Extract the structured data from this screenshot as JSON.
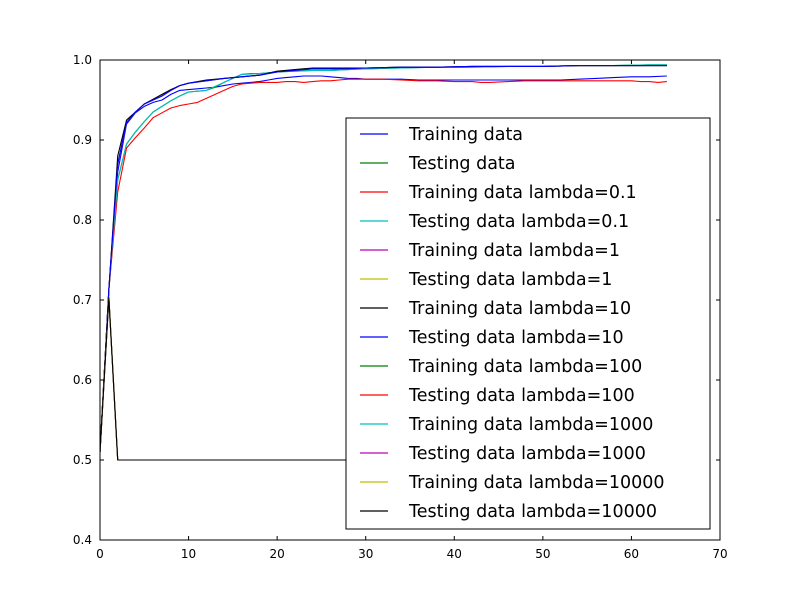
{
  "chart_data": {
    "type": "line",
    "xlim": [
      0,
      70
    ],
    "ylim": [
      0.4,
      1.0
    ],
    "xticks": [
      "0",
      "10",
      "20",
      "30",
      "40",
      "50",
      "60",
      "70"
    ],
    "yticks": [
      "0.4",
      "0.5",
      "0.6",
      "0.7",
      "0.8",
      "0.9",
      "1.0"
    ],
    "grid": false,
    "legend_position": "lower-right",
    "series": [
      {
        "name": "Training data",
        "color": "#0000ff",
        "x": [
          0,
          1,
          2,
          3,
          4,
          5,
          6,
          7,
          8,
          9,
          10,
          11,
          12,
          13,
          14,
          15,
          16,
          17,
          18,
          19,
          20,
          21,
          22,
          23,
          24,
          25,
          26,
          27,
          28,
          29,
          30,
          32,
          34,
          36,
          38,
          40,
          42,
          44,
          46,
          48,
          50,
          52,
          54,
          56,
          58,
          60,
          62,
          64
        ],
        "y": [
          0.51,
          0.713,
          0.86,
          0.92,
          0.934,
          0.942,
          0.947,
          0.95,
          0.957,
          0.962,
          0.963,
          0.964,
          0.965,
          0.966,
          0.968,
          0.97,
          0.971,
          0.972,
          0.973,
          0.975,
          0.977,
          0.978,
          0.979,
          0.98,
          0.98,
          0.98,
          0.979,
          0.978,
          0.977,
          0.977,
          0.976,
          0.976,
          0.976,
          0.975,
          0.975,
          0.975,
          0.975,
          0.975,
          0.975,
          0.975,
          0.975,
          0.975,
          0.976,
          0.977,
          0.978,
          0.979,
          0.979,
          0.98
        ]
      },
      {
        "name": "Testing data",
        "color": "#008000",
        "x": [
          0,
          1,
          2,
          3,
          4,
          5,
          6,
          7,
          8,
          9,
          10,
          11,
          12,
          13,
          14,
          15,
          16,
          17,
          18,
          19,
          20,
          22,
          24,
          26,
          28,
          30,
          34,
          38,
          42,
          46,
          50,
          54,
          58,
          62,
          64
        ],
        "y": [
          0.51,
          0.713,
          0.85,
          0.895,
          0.91,
          0.923,
          0.935,
          0.942,
          0.949,
          0.955,
          0.96,
          0.961,
          0.962,
          0.966,
          0.972,
          0.977,
          0.982,
          0.983,
          0.983,
          0.984,
          0.985,
          0.986,
          0.987,
          0.987,
          0.988,
          0.989,
          0.99,
          0.991,
          0.991,
          0.992,
          0.992,
          0.993,
          0.993,
          0.994,
          0.994
        ]
      },
      {
        "name": "Training data lambda=0.1",
        "color": "#ff0000",
        "x": [
          0,
          1,
          2,
          3,
          4,
          5,
          6,
          7,
          8,
          9,
          10,
          11,
          12,
          13,
          14,
          15,
          16,
          17,
          18,
          19,
          20,
          21,
          22,
          23,
          24,
          25,
          26,
          27,
          28,
          29,
          30,
          32,
          34,
          36,
          38,
          40,
          42,
          43,
          44,
          46,
          48,
          50,
          52,
          54,
          56,
          58,
          60,
          61,
          62,
          63,
          64
        ],
        "y": [
          0.51,
          0.713,
          0.835,
          0.89,
          0.903,
          0.915,
          0.928,
          0.934,
          0.94,
          0.943,
          0.945,
          0.947,
          0.952,
          0.957,
          0.962,
          0.967,
          0.97,
          0.971,
          0.972,
          0.972,
          0.972,
          0.973,
          0.973,
          0.972,
          0.973,
          0.974,
          0.974,
          0.975,
          0.976,
          0.976,
          0.976,
          0.976,
          0.975,
          0.974,
          0.974,
          0.973,
          0.973,
          0.972,
          0.972,
          0.973,
          0.974,
          0.974,
          0.974,
          0.974,
          0.974,
          0.974,
          0.974,
          0.973,
          0.973,
          0.972,
          0.973
        ]
      },
      {
        "name": "Testing data lambda=0.1",
        "color": "#00bfbf",
        "x": [
          0,
          1,
          2,
          3,
          4,
          5,
          6,
          7,
          8,
          9,
          10,
          12,
          14,
          16,
          18,
          20,
          22,
          24,
          26,
          28,
          30,
          34,
          38,
          42,
          46,
          50,
          54,
          58,
          62,
          64
        ],
        "y": [
          0.51,
          0.713,
          0.85,
          0.895,
          0.91,
          0.923,
          0.935,
          0.942,
          0.949,
          0.955,
          0.96,
          0.962,
          0.972,
          0.982,
          0.983,
          0.985,
          0.986,
          0.987,
          0.987,
          0.988,
          0.989,
          0.99,
          0.991,
          0.991,
          0.992,
          0.992,
          0.993,
          0.993,
          0.994,
          0.994
        ]
      },
      {
        "name": "Training data lambda=1",
        "color": "#bf00bf",
        "x": [
          0,
          1,
          2,
          3,
          4,
          5,
          6,
          7,
          8,
          9,
          10,
          12,
          14,
          16,
          18,
          20,
          22,
          24,
          26,
          28,
          30,
          34,
          38,
          42,
          46,
          50,
          54,
          58,
          62,
          64
        ],
        "y": [
          0.51,
          0.713,
          0.87,
          0.922,
          0.935,
          0.945,
          0.95,
          0.955,
          0.962,
          0.968,
          0.971,
          0.974,
          0.977,
          0.979,
          0.981,
          0.985,
          0.987,
          0.989,
          0.989,
          0.989,
          0.99,
          0.991,
          0.991,
          0.992,
          0.992,
          0.992,
          0.993,
          0.993,
          0.993,
          0.993
        ]
      },
      {
        "name": "Testing data lambda=1",
        "color": "#bfbf00",
        "x": [
          0,
          1,
          2,
          3,
          4,
          5,
          6,
          7,
          8,
          9,
          10,
          12,
          14,
          16,
          18,
          20,
          22,
          24,
          26,
          28,
          30,
          34,
          38,
          42,
          46,
          50,
          54,
          58,
          62,
          64
        ],
        "y": [
          0.51,
          0.713,
          0.87,
          0.922,
          0.935,
          0.945,
          0.95,
          0.955,
          0.962,
          0.968,
          0.971,
          0.974,
          0.977,
          0.979,
          0.981,
          0.985,
          0.987,
          0.989,
          0.989,
          0.989,
          0.99,
          0.991,
          0.991,
          0.992,
          0.992,
          0.992,
          0.993,
          0.993,
          0.993,
          0.993
        ]
      },
      {
        "name": "Training data lambda=10",
        "color": "#000000",
        "x": [
          0,
          1,
          2,
          3,
          4,
          5,
          6,
          7,
          8,
          9,
          10,
          12,
          14,
          16,
          18,
          20,
          22,
          24,
          26,
          28,
          30,
          34,
          38,
          42,
          46,
          50,
          54,
          58,
          62,
          64
        ],
        "y": [
          0.51,
          0.713,
          0.88,
          0.925,
          0.935,
          0.945,
          0.951,
          0.957,
          0.963,
          0.968,
          0.971,
          0.975,
          0.977,
          0.979,
          0.981,
          0.986,
          0.988,
          0.99,
          0.99,
          0.99,
          0.99,
          0.991,
          0.991,
          0.992,
          0.992,
          0.992,
          0.993,
          0.993,
          0.993,
          0.993
        ]
      },
      {
        "name": "Testing data lambda=10",
        "color": "#0000ff",
        "x": [
          0,
          1,
          2,
          3,
          4,
          5,
          6,
          7,
          8,
          9,
          10,
          12,
          14,
          16,
          18,
          20,
          22,
          24,
          26,
          28,
          30,
          34,
          38,
          42,
          46,
          50,
          54,
          58,
          62,
          64
        ],
        "y": [
          0.51,
          0.713,
          0.87,
          0.922,
          0.935,
          0.945,
          0.95,
          0.955,
          0.962,
          0.968,
          0.971,
          0.974,
          0.977,
          0.979,
          0.981,
          0.985,
          0.987,
          0.989,
          0.989,
          0.989,
          0.99,
          0.991,
          0.991,
          0.992,
          0.992,
          0.992,
          0.993,
          0.993,
          0.993,
          0.993
        ]
      },
      {
        "name": "Training data lambda=100",
        "color": "#008000",
        "x": [
          0,
          1,
          2,
          64
        ],
        "y": [
          0.51,
          0.703,
          0.5,
          0.5
        ]
      },
      {
        "name": "Testing data lambda=100",
        "color": "#ff0000",
        "x": [
          0,
          1,
          2,
          64
        ],
        "y": [
          0.51,
          0.703,
          0.5,
          0.5
        ]
      },
      {
        "name": "Training data lambda=1000",
        "color": "#00bfbf",
        "x": [
          0,
          1,
          2,
          64
        ],
        "y": [
          0.51,
          0.703,
          0.5,
          0.5
        ]
      },
      {
        "name": "Testing data lambda=1000",
        "color": "#bf00bf",
        "x": [
          0,
          1,
          2,
          64
        ],
        "y": [
          0.51,
          0.703,
          0.5,
          0.5
        ]
      },
      {
        "name": "Training data lambda=10000",
        "color": "#bfbf00",
        "x": [
          0,
          1,
          2,
          64
        ],
        "y": [
          0.51,
          0.703,
          0.5,
          0.5
        ]
      },
      {
        "name": "Testing data lambda=10000",
        "color": "#000000",
        "x": [
          0,
          1,
          2,
          64
        ],
        "y": [
          0.51,
          0.703,
          0.5,
          0.5
        ]
      }
    ]
  }
}
